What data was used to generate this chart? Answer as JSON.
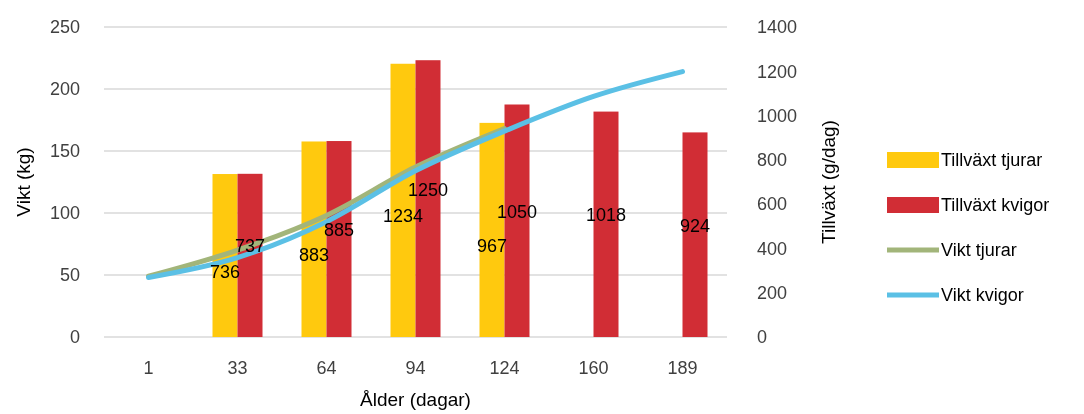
{
  "chart_data": {
    "type": "bar",
    "xlabel": "Ålder (dagar)",
    "ylabel": "Vikt (kg)",
    "y2label": "Tillväxt (g/dag)",
    "categories": [
      "1",
      "33",
      "64",
      "94",
      "124",
      "160",
      "189"
    ],
    "series": [
      {
        "name": "Tillväxt tjurar",
        "axis": "y2",
        "color": "#ffc90e",
        "values": [
          null,
          736,
          883,
          1234,
          967,
          null,
          null
        ],
        "value_labels": [
          null,
          "736",
          "883",
          "1234",
          "967",
          null,
          null
        ]
      },
      {
        "name": "Tillväxt kvigor",
        "axis": "y2",
        "color": "#d12d35",
        "values": [
          null,
          737,
          885,
          1250,
          1050,
          1018,
          924
        ],
        "value_labels": [
          null,
          "737",
          "885",
          "1250",
          "1050",
          "1018",
          "924"
        ]
      },
      {
        "name": "Vikt tjurar",
        "type": "line",
        "color": "#a2b57a",
        "values": [
          49,
          70,
          98,
          137,
          168,
          null,
          null
        ]
      },
      {
        "name": "Vikt kvigor",
        "type": "line",
        "color": "#5bc0e5",
        "values": [
          48,
          64,
          93,
          134,
          166,
          194,
          214
        ]
      }
    ],
    "ylim": [
      0,
      250
    ],
    "yticks": [
      0,
      50,
      100,
      150,
      200,
      250
    ],
    "y2lim": [
      0,
      1400
    ],
    "y2ticks": [
      0,
      200,
      400,
      600,
      800,
      1000,
      1200,
      1400
    ],
    "grid": "y",
    "legend": "right",
    "marker": "none",
    "line_style": "solid"
  }
}
